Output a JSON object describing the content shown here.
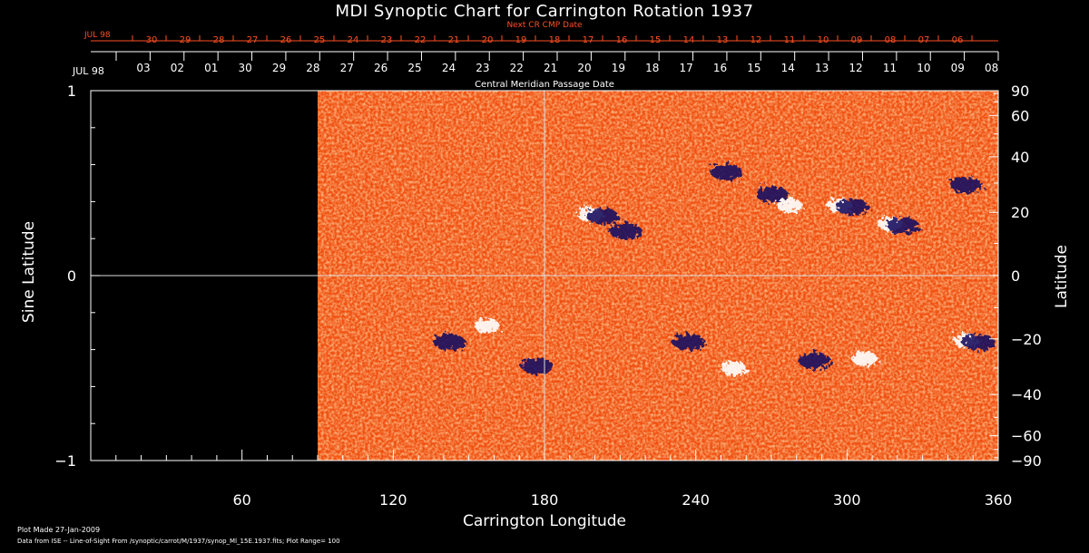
{
  "chart_data": {
    "type": "heatmap",
    "title": "MDI Synoptic Chart for Carrington Rotation 1937",
    "xlabel": "Carrington Longitude",
    "ylabel": "Sine Latitude",
    "ylabel_right": "Latitude",
    "xlim": [
      0,
      360
    ],
    "ylim": [
      -1,
      1
    ],
    "no_data_range": [
      0,
      90
    ],
    "x_ticks": [
      60,
      120,
      180,
      240,
      300,
      360
    ],
    "y_ticks_left": [
      1,
      0,
      -1
    ],
    "y_ticks_right": [
      90,
      60,
      40,
      20,
      0,
      -20,
      -40,
      -60,
      -90
    ],
    "top_axis_title": "Central Meridian Passage Date",
    "top_axis_month": "JUL 98",
    "top_axis_dates": [
      "03",
      "02",
      "01",
      "30",
      "29",
      "28",
      "27",
      "26",
      "25",
      "24",
      "23",
      "22",
      "21",
      "20",
      "19",
      "18",
      "17",
      "16",
      "15",
      "14",
      "13",
      "12",
      "11",
      "10",
      "09",
      "08"
    ],
    "next_cr_title": "Next CR CMP Date",
    "next_cr_month": "JUL 98",
    "next_cr_dates": [
      "30",
      "29",
      "28",
      "27",
      "26",
      "25",
      "24",
      "23",
      "22",
      "21",
      "20",
      "19",
      "18",
      "17",
      "16",
      "15",
      "14",
      "13",
      "12",
      "11",
      "10",
      "09",
      "08",
      "07",
      "06"
    ],
    "colors": {
      "background": "#000000",
      "field": "#f05010",
      "positive": "#ffffff",
      "negative": "#1a1060",
      "next_cr": "#ff5020"
    },
    "active_regions": [
      {
        "lon": 201,
        "sinlat": 0.33,
        "polarity": "mixed"
      },
      {
        "lon": 210,
        "sinlat": 0.25,
        "polarity": "negative"
      },
      {
        "lon": 250,
        "sinlat": 0.57,
        "polarity": "negative"
      },
      {
        "lon": 268,
        "sinlat": 0.45,
        "polarity": "negative"
      },
      {
        "lon": 280,
        "sinlat": 0.38,
        "polarity": "positive"
      },
      {
        "lon": 300,
        "sinlat": 0.38,
        "polarity": "mixed"
      },
      {
        "lon": 320,
        "sinlat": 0.28,
        "polarity": "mixed"
      },
      {
        "lon": 345,
        "sinlat": 0.5,
        "polarity": "negative"
      },
      {
        "lon": 140,
        "sinlat": -0.35,
        "polarity": "negative"
      },
      {
        "lon": 160,
        "sinlat": -0.27,
        "polarity": "positive"
      },
      {
        "lon": 175,
        "sinlat": -0.48,
        "polarity": "negative"
      },
      {
        "lon": 235,
        "sinlat": -0.35,
        "polarity": "negative"
      },
      {
        "lon": 258,
        "sinlat": -0.5,
        "polarity": "positive"
      },
      {
        "lon": 285,
        "sinlat": -0.45,
        "polarity": "negative"
      },
      {
        "lon": 310,
        "sinlat": -0.45,
        "polarity": "positive"
      },
      {
        "lon": 350,
        "sinlat": -0.35,
        "polarity": "mixed"
      }
    ]
  },
  "footer": {
    "plot_made": "Plot Made 27-Jan-2009",
    "data_source": "Data from ISE -- Line-of-Sight From /synoptic/carrot/M/1937/synop_Ml_15E.1937.fits; Plot Range=  100"
  }
}
